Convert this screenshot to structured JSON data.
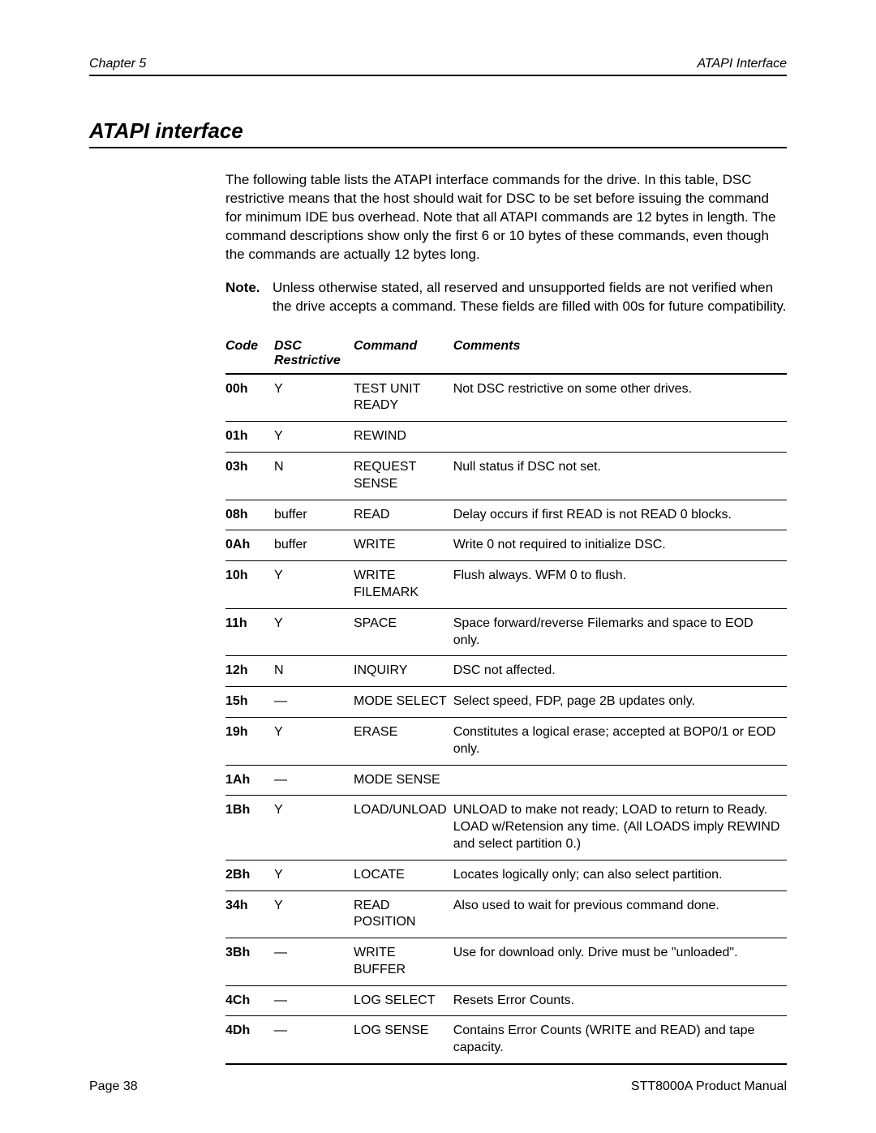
{
  "header": {
    "left": "Chapter 5",
    "right": "ATAPI Interface"
  },
  "section_title": "ATAPI interface",
  "intro": "The following table lists the ATAPI interface commands for the drive. In this table, DSC restrictive means that the host should wait for DSC to be set before issuing the command for minimum IDE bus overhead. Note that all ATAPI commands are 12 bytes in length. The command descriptions show only the first 6 or 10 bytes of these commands, even though the commands are actually 12 bytes long.",
  "note": {
    "label": "Note.",
    "text": "Unless otherwise stated, all reserved and unsupported fields are not verified when the drive accepts a command. These fields are filled with 00s for future compatibility."
  },
  "table": {
    "headers": {
      "code": "Code",
      "dsc": "DSC Restrictive",
      "command": "Command",
      "comments": "Comments"
    },
    "rows": [
      {
        "code": "00h",
        "dsc": "Y",
        "command": "TEST UNIT READY",
        "comments": "Not DSC restrictive on some other drives."
      },
      {
        "code": "01h",
        "dsc": "Y",
        "command": "REWIND",
        "comments": ""
      },
      {
        "code": "03h",
        "dsc": "N",
        "command": "REQUEST SENSE",
        "comments": "Null status if DSC not set."
      },
      {
        "code": "08h",
        "dsc": "buffer",
        "command": "READ",
        "comments": "Delay occurs if first READ is not READ 0 blocks."
      },
      {
        "code": "0Ah",
        "dsc": "buffer",
        "command": "WRITE",
        "comments": "Write 0 not required to initialize DSC."
      },
      {
        "code": "10h",
        "dsc": "Y",
        "command": "WRITE FILEMARK",
        "comments": "Flush always. WFM 0 to flush."
      },
      {
        "code": "11h",
        "dsc": "Y",
        "command": "SPACE",
        "comments": "Space forward/reverse Filemarks and space to EOD only."
      },
      {
        "code": "12h",
        "dsc": "N",
        "command": "INQUIRY",
        "comments": "DSC not affected."
      },
      {
        "code": "15h",
        "dsc": "—",
        "command": "MODE SELECT",
        "comments": "Select speed, FDP, page 2B updates only."
      },
      {
        "code": "19h",
        "dsc": "Y",
        "command": "ERASE",
        "comments": "Constitutes a logical erase; accepted at BOP0/1 or EOD only."
      },
      {
        "code": "1Ah",
        "dsc": "—",
        "command": "MODE SENSE",
        "comments": ""
      },
      {
        "code": "1Bh",
        "dsc": "Y",
        "command": "LOAD/UNLOAD",
        "comments": "UNLOAD to make not ready; LOAD to return to Ready. LOAD w/Retension any time. (All LOADS imply REWIND and select partition 0.)"
      },
      {
        "code": "2Bh",
        "dsc": "Y",
        "command": "LOCATE",
        "comments": "Locates logically only; can also select partition."
      },
      {
        "code": "34h",
        "dsc": "Y",
        "command": "READ POSITION",
        "comments": "Also used to wait for previous command done."
      },
      {
        "code": "3Bh",
        "dsc": "—",
        "command": "WRITE BUFFER",
        "comments": "Use for download only. Drive must be \"unloaded\"."
      },
      {
        "code": "4Ch",
        "dsc": "—",
        "command": "LOG SELECT",
        "comments": "Resets Error Counts."
      },
      {
        "code": "4Dh",
        "dsc": "—",
        "command": "LOG SENSE",
        "comments": "Contains Error Counts (WRITE and READ) and tape capacity."
      }
    ]
  },
  "footer": {
    "left": "Page 38",
    "right": "STT8000A Product Manual"
  }
}
